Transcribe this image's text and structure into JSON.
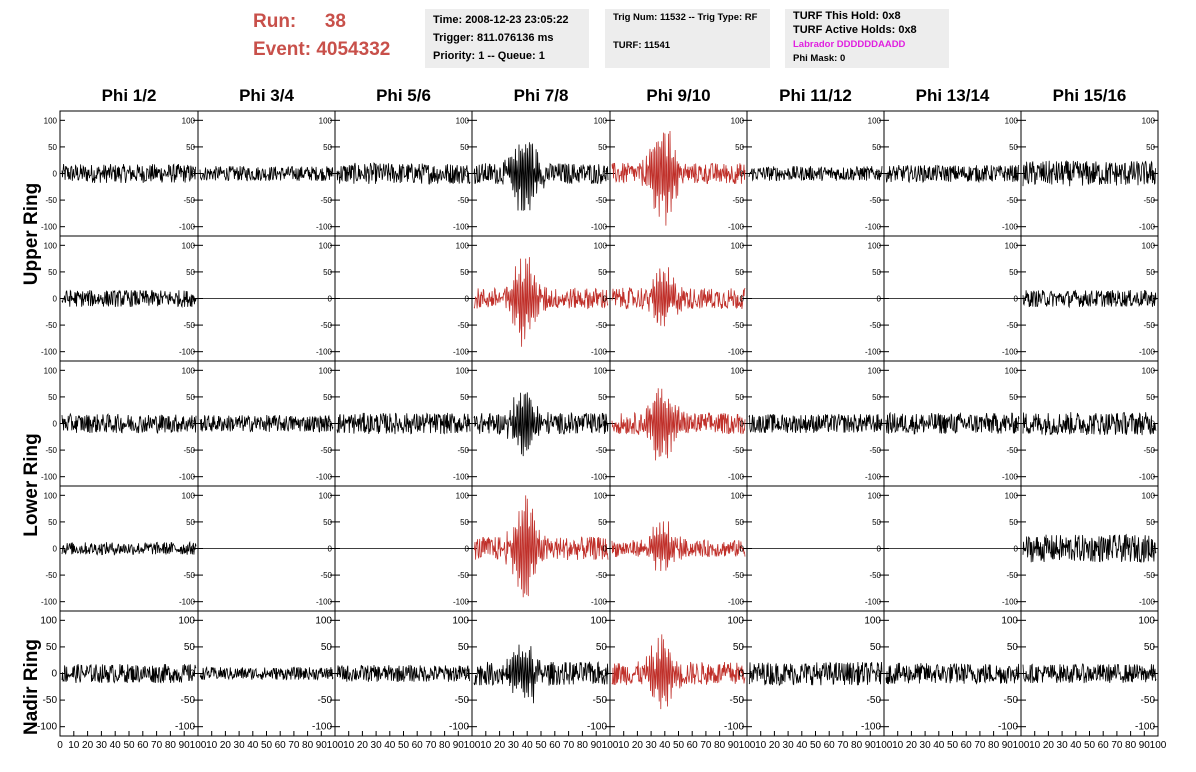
{
  "run": {
    "run_label": "Run:",
    "run_value": "38",
    "event_label": "Event:",
    "event_value": "4054332"
  },
  "time_box": {
    "time": "Time: 2008-12-23 23:05:22",
    "trigger": "Trigger: 811.076136 ms",
    "priority": "Priority: 1 -- Queue: 1"
  },
  "trig_box": {
    "trig": "Trig Num: 11532 -- Trig Type: RF",
    "turf": "TURF: 11541"
  },
  "turf_box": {
    "hold": "TURF This Hold: 0x8",
    "active": "TURF Active Holds: 0x8",
    "labrador": "Labrador DDDDDDAADD",
    "phimask": "Phi Mask: 0"
  },
  "phi_headers": [
    "Phi 1/2",
    "Phi 3/4",
    "Phi 5/6",
    "Phi 7/8",
    "Phi 9/10",
    "Phi 11/12",
    "Phi 13/14",
    "Phi 15/16"
  ],
  "ring_labels": [
    "Upper Ring",
    "Lower Ring",
    "Nadir Ring"
  ],
  "axis": {
    "y_ticks": [
      "100",
      "50",
      "0",
      "-50",
      "-100"
    ],
    "x_ticks": [
      "0",
      "10",
      "20",
      "30",
      "40",
      "50",
      "60",
      "70",
      "80",
      "90",
      "100"
    ],
    "x_range": [
      0,
      100
    ],
    "y_range": [
      -110,
      110
    ]
  },
  "colors": {
    "normal_trace": "#000000",
    "trigger_trace": "#c0302a",
    "title_red": "#c8504a",
    "info_bg": "#ededed",
    "magenta": "#e020e0"
  },
  "panels": [
    {
      "row": 0,
      "col": 0,
      "highlight": false,
      "amplitude": 18,
      "burst": false
    },
    {
      "row": 0,
      "col": 1,
      "highlight": false,
      "amplitude": 14,
      "burst": false
    },
    {
      "row": 0,
      "col": 2,
      "highlight": false,
      "amplitude": 20,
      "burst": false
    },
    {
      "row": 0,
      "col": 3,
      "highlight": false,
      "amplitude": 20,
      "burst": true,
      "peak": 80
    },
    {
      "row": 0,
      "col": 4,
      "highlight": true,
      "amplitude": 20,
      "burst": true,
      "peak": 100
    },
    {
      "row": 0,
      "col": 5,
      "highlight": false,
      "amplitude": 14,
      "burst": false
    },
    {
      "row": 0,
      "col": 6,
      "highlight": false,
      "amplitude": 16,
      "burst": false
    },
    {
      "row": 0,
      "col": 7,
      "highlight": false,
      "amplitude": 24,
      "burst": false
    },
    {
      "row": 1,
      "col": 0,
      "highlight": false,
      "amplitude": 16,
      "burst": false
    },
    {
      "row": 1,
      "col": 1,
      "highlight": false,
      "amplitude": 0,
      "burst": false
    },
    {
      "row": 1,
      "col": 2,
      "highlight": false,
      "amplitude": 0,
      "burst": false
    },
    {
      "row": 1,
      "col": 3,
      "highlight": true,
      "amplitude": 20,
      "burst": true,
      "peak": 90
    },
    {
      "row": 1,
      "col": 4,
      "highlight": true,
      "amplitude": 20,
      "burst": true,
      "peak": 60
    },
    {
      "row": 1,
      "col": 5,
      "highlight": false,
      "amplitude": 0,
      "burst": false
    },
    {
      "row": 1,
      "col": 6,
      "highlight": false,
      "amplitude": 0,
      "burst": false
    },
    {
      "row": 1,
      "col": 7,
      "highlight": false,
      "amplitude": 16,
      "burst": false
    },
    {
      "row": 2,
      "col": 0,
      "highlight": false,
      "amplitude": 18,
      "burst": false
    },
    {
      "row": 2,
      "col": 1,
      "highlight": false,
      "amplitude": 16,
      "burst": false
    },
    {
      "row": 2,
      "col": 2,
      "highlight": false,
      "amplitude": 20,
      "burst": false
    },
    {
      "row": 2,
      "col": 3,
      "highlight": false,
      "amplitude": 20,
      "burst": true,
      "peak": 70
    },
    {
      "row": 2,
      "col": 4,
      "highlight": true,
      "amplitude": 20,
      "burst": true,
      "peak": 80
    },
    {
      "row": 2,
      "col": 5,
      "highlight": false,
      "amplitude": 18,
      "burst": false
    },
    {
      "row": 2,
      "col": 6,
      "highlight": false,
      "amplitude": 20,
      "burst": false
    },
    {
      "row": 2,
      "col": 7,
      "highlight": false,
      "amplitude": 22,
      "burst": false
    },
    {
      "row": 3,
      "col": 0,
      "highlight": false,
      "amplitude": 12,
      "burst": false
    },
    {
      "row": 3,
      "col": 1,
      "highlight": false,
      "amplitude": 0,
      "burst": false
    },
    {
      "row": 3,
      "col": 2,
      "highlight": false,
      "amplitude": 0,
      "burst": false
    },
    {
      "row": 3,
      "col": 3,
      "highlight": true,
      "amplitude": 22,
      "burst": true,
      "peak": 105
    },
    {
      "row": 3,
      "col": 4,
      "highlight": true,
      "amplitude": 16,
      "burst": true,
      "peak": 55
    },
    {
      "row": 3,
      "col": 5,
      "highlight": false,
      "amplitude": 0,
      "burst": false
    },
    {
      "row": 3,
      "col": 6,
      "highlight": false,
      "amplitude": 0,
      "burst": false
    },
    {
      "row": 3,
      "col": 7,
      "highlight": false,
      "amplitude": 26,
      "burst": false
    },
    {
      "row": 4,
      "col": 0,
      "highlight": false,
      "amplitude": 18,
      "burst": false
    },
    {
      "row": 4,
      "col": 1,
      "highlight": false,
      "amplitude": 12,
      "burst": false
    },
    {
      "row": 4,
      "col": 2,
      "highlight": false,
      "amplitude": 16,
      "burst": false
    },
    {
      "row": 4,
      "col": 3,
      "highlight": false,
      "amplitude": 22,
      "burst": true,
      "peak": 55
    },
    {
      "row": 4,
      "col": 4,
      "highlight": true,
      "amplitude": 22,
      "burst": true,
      "peak": 75
    },
    {
      "row": 4,
      "col": 5,
      "highlight": false,
      "amplitude": 22,
      "burst": false
    },
    {
      "row": 4,
      "col": 6,
      "highlight": false,
      "amplitude": 20,
      "burst": false
    },
    {
      "row": 4,
      "col": 7,
      "highlight": false,
      "amplitude": 18,
      "burst": false
    }
  ]
}
